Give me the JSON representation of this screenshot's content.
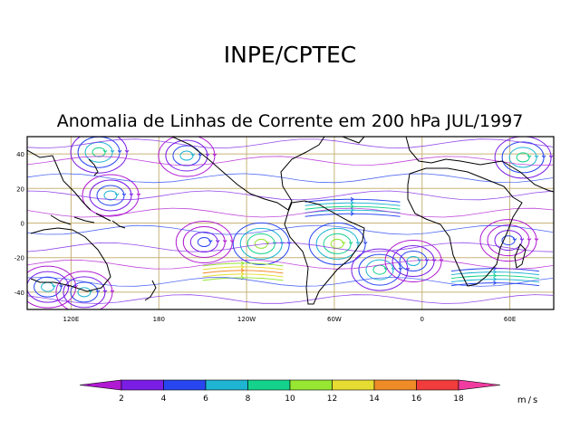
{
  "header": {
    "title": "INPE/CPTEC"
  },
  "chart_data": {
    "type": "streamline-map",
    "title": "Anomalia de Linhas de Corrente em 200 hPa JUL/1997",
    "ylim": [
      -50,
      50
    ],
    "xlim": [
      90,
      450
    ],
    "y_ticks": [
      {
        "value": 40,
        "label": "40"
      },
      {
        "value": 20,
        "label": "20"
      },
      {
        "value": 0,
        "label": "0"
      },
      {
        "value": -20,
        "label": "-20"
      },
      {
        "value": -40,
        "label": "-40"
      }
    ],
    "x_ticks": [
      {
        "value": 120,
        "label": "120E"
      },
      {
        "value": 180,
        "label": "180"
      },
      {
        "value": 240,
        "label": "120W"
      },
      {
        "value": 300,
        "label": "60W"
      },
      {
        "value": 360,
        "label": "0"
      },
      {
        "value": 420,
        "label": "60E"
      }
    ],
    "colorbar": {
      "unit": "m/s",
      "labels": [
        "2",
        "4",
        "6",
        "8",
        "10",
        "12",
        "14",
        "16",
        "18"
      ],
      "colors": [
        "#b01ad2",
        "#7a1ee6",
        "#2846f0",
        "#1eb4d2",
        "#14d28c",
        "#96e632",
        "#e6dc32",
        "#f08c28",
        "#f03c3c",
        "#f03ca0"
      ]
    },
    "circulations": [
      {
        "lon": 250,
        "lat": -12,
        "intensity": 10
      },
      {
        "lon": 302,
        "lat": -12,
        "intensity": 10
      },
      {
        "lon": 331,
        "lat": -27,
        "intensity": 8
      },
      {
        "lon": 354,
        "lat": -22,
        "intensity": 6
      },
      {
        "lon": 139,
        "lat": 41,
        "intensity": 8
      },
      {
        "lon": 147,
        "lat": 16,
        "intensity": 6
      },
      {
        "lon": 199,
        "lat": 39,
        "intensity": 6
      },
      {
        "lon": 104,
        "lat": -37,
        "intensity": 6
      },
      {
        "lon": 129,
        "lat": -40,
        "intensity": 6
      },
      {
        "lon": 429,
        "lat": 38,
        "intensity": 8
      },
      {
        "lon": 211,
        "lat": -11,
        "intensity": 4
      },
      {
        "lon": 419,
        "lat": -10,
        "intensity": 4
      }
    ],
    "jets": [
      {
        "lat": -29,
        "lon_start": 210,
        "lon_end": 265,
        "intensity": 14
      },
      {
        "lat": 8,
        "lon_start": 280,
        "lon_end": 345,
        "intensity": 8
      },
      {
        "lat": -32,
        "lon_start": 380,
        "lon_end": 440,
        "intensity": 8
      }
    ]
  }
}
